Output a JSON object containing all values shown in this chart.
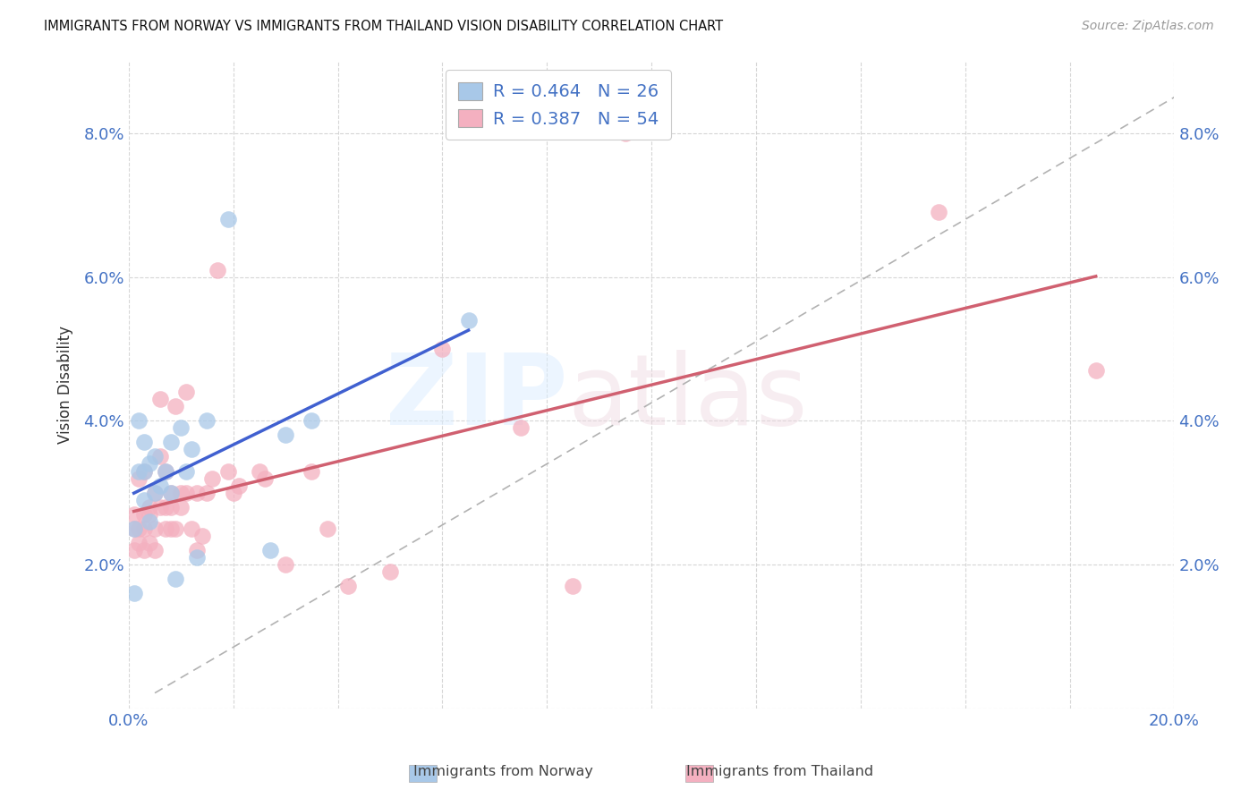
{
  "title": "IMMIGRANTS FROM NORWAY VS IMMIGRANTS FROM THAILAND VISION DISABILITY CORRELATION CHART",
  "source": "Source: ZipAtlas.com",
  "ylabel": "Vision Disability",
  "xlim": [
    0.0,
    0.2
  ],
  "ylim": [
    0.0,
    0.09
  ],
  "xticks": [
    0.0,
    0.02,
    0.04,
    0.06,
    0.08,
    0.1,
    0.12,
    0.14,
    0.16,
    0.18,
    0.2
  ],
  "yticks": [
    0.0,
    0.02,
    0.04,
    0.06,
    0.08
  ],
  "norway_R": 0.464,
  "norway_N": 26,
  "thailand_R": 0.387,
  "thailand_N": 54,
  "norway_color": "#a8c8e8",
  "thailand_color": "#f4b0c0",
  "norway_line_color": "#4060d0",
  "thailand_line_color": "#d06070",
  "diagonal_color": "#aaaaaa",
  "background_color": "#ffffff",
  "norway_x": [
    0.001,
    0.001,
    0.002,
    0.002,
    0.003,
    0.003,
    0.003,
    0.004,
    0.004,
    0.005,
    0.005,
    0.006,
    0.007,
    0.008,
    0.008,
    0.009,
    0.01,
    0.011,
    0.012,
    0.013,
    0.015,
    0.019,
    0.027,
    0.03,
    0.035,
    0.065
  ],
  "norway_y": [
    0.016,
    0.025,
    0.033,
    0.04,
    0.029,
    0.033,
    0.037,
    0.026,
    0.034,
    0.03,
    0.035,
    0.031,
    0.033,
    0.03,
    0.037,
    0.018,
    0.039,
    0.033,
    0.036,
    0.021,
    0.04,
    0.068,
    0.022,
    0.038,
    0.04,
    0.054
  ],
  "thailand_x": [
    0.001,
    0.001,
    0.001,
    0.002,
    0.002,
    0.002,
    0.003,
    0.003,
    0.003,
    0.003,
    0.004,
    0.004,
    0.004,
    0.005,
    0.005,
    0.005,
    0.006,
    0.006,
    0.006,
    0.007,
    0.007,
    0.007,
    0.008,
    0.008,
    0.008,
    0.009,
    0.009,
    0.01,
    0.01,
    0.011,
    0.011,
    0.012,
    0.013,
    0.013,
    0.014,
    0.015,
    0.016,
    0.017,
    0.019,
    0.02,
    0.021,
    0.025,
    0.026,
    0.03,
    0.035,
    0.038,
    0.042,
    0.05,
    0.06,
    0.075,
    0.085,
    0.095,
    0.155,
    0.185
  ],
  "thailand_y": [
    0.022,
    0.025,
    0.027,
    0.023,
    0.025,
    0.032,
    0.022,
    0.025,
    0.027,
    0.033,
    0.023,
    0.027,
    0.028,
    0.022,
    0.025,
    0.03,
    0.028,
    0.035,
    0.043,
    0.025,
    0.028,
    0.033,
    0.025,
    0.028,
    0.03,
    0.025,
    0.042,
    0.028,
    0.03,
    0.03,
    0.044,
    0.025,
    0.022,
    0.03,
    0.024,
    0.03,
    0.032,
    0.061,
    0.033,
    0.03,
    0.031,
    0.033,
    0.032,
    0.02,
    0.033,
    0.025,
    0.017,
    0.019,
    0.05,
    0.039,
    0.017,
    0.08,
    0.069,
    0.047
  ]
}
